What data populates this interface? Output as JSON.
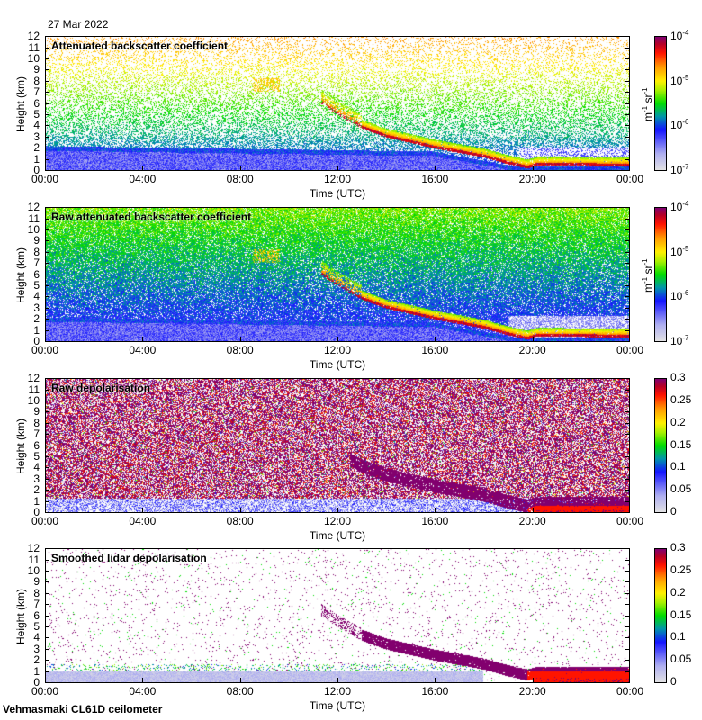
{
  "date": "27 Mar 2022",
  "footer": "Vehmasmaki CL61D ceilometer",
  "chart_data": [
    {
      "type": "heatmap",
      "title": "Attenuated backscatter coefficient",
      "xlabel": "Time (UTC)",
      "ylabel": "Height (km)",
      "xticks": [
        "00:00",
        "04:00",
        "08:00",
        "12:00",
        "16:00",
        "20:00",
        "00:00"
      ],
      "yticks": [
        "0",
        "1",
        "2",
        "3",
        "4",
        "5",
        "6",
        "7",
        "8",
        "9",
        "10",
        "11",
        "12"
      ],
      "ylim": [
        0,
        12
      ],
      "xlim_hours": [
        0,
        24
      ],
      "colorbar": {
        "scale": "log",
        "range": [
          1e-07,
          0.0001
        ],
        "ticks": [
          {
            "base": "10",
            "exp": "-7"
          },
          {
            "base": "10",
            "exp": "-6"
          },
          {
            "base": "10",
            "exp": "-5"
          },
          {
            "base": "10",
            "exp": "-4"
          }
        ],
        "label": {
          "m": "m",
          "m_exp": "-1",
          "sr": "sr",
          "sr_exp": "-1"
        }
      },
      "cmap": "backscatter"
    },
    {
      "type": "heatmap",
      "title": "Raw attenuated backscatter coefficient",
      "xlabel": "Time (UTC)",
      "ylabel": "Height (km)",
      "xticks": [
        "00:00",
        "04:00",
        "08:00",
        "12:00",
        "16:00",
        "20:00",
        "00:00"
      ],
      "yticks": [
        "0",
        "1",
        "2",
        "3",
        "4",
        "5",
        "6",
        "7",
        "8",
        "9",
        "10",
        "11",
        "12"
      ],
      "ylim": [
        0,
        12
      ],
      "xlim_hours": [
        0,
        24
      ],
      "colorbar": {
        "scale": "log",
        "range": [
          1e-07,
          0.0001
        ],
        "ticks": [
          {
            "base": "10",
            "exp": "-7"
          },
          {
            "base": "10",
            "exp": "-6"
          },
          {
            "base": "10",
            "exp": "-5"
          },
          {
            "base": "10",
            "exp": "-4"
          }
        ],
        "label": {
          "m": "m",
          "m_exp": "-1",
          "sr": "sr",
          "sr_exp": "-1"
        }
      },
      "cmap": "backscatter"
    },
    {
      "type": "heatmap",
      "title": "Raw depolarisation",
      "xlabel": "Time (UTC)",
      "ylabel": "Height (km)",
      "xticks": [
        "00:00",
        "04:00",
        "08:00",
        "12:00",
        "16:00",
        "20:00",
        "00:00"
      ],
      "yticks": [
        "0",
        "1",
        "2",
        "3",
        "4",
        "5",
        "6",
        "7",
        "8",
        "9",
        "10",
        "11",
        "12"
      ],
      "ylim": [
        0,
        12
      ],
      "xlim_hours": [
        0,
        24
      ],
      "colorbar": {
        "scale": "linear",
        "range": [
          0,
          0.3
        ],
        "ticks": [
          "0",
          "0.05",
          "0.1",
          "0.15",
          "0.2",
          "0.25",
          "0.3"
        ]
      },
      "cmap": "depol"
    },
    {
      "type": "heatmap",
      "title": "Smoothed lidar depolarisation",
      "xlabel": "Time (UTC)",
      "ylabel": "Height (km)",
      "xticks": [
        "00:00",
        "04:00",
        "08:00",
        "12:00",
        "16:00",
        "20:00",
        "00:00"
      ],
      "yticks": [
        "0",
        "1",
        "2",
        "3",
        "4",
        "5",
        "6",
        "7",
        "8",
        "9",
        "10",
        "11",
        "12"
      ],
      "ylim": [
        0,
        12
      ],
      "xlim_hours": [
        0,
        24
      ],
      "colorbar": {
        "scale": "linear",
        "range": [
          0,
          0.3
        ],
        "ticks": [
          "0",
          "0.05",
          "0.1",
          "0.15",
          "0.2",
          "0.25",
          "0.3"
        ]
      },
      "cmap": "depol"
    }
  ]
}
